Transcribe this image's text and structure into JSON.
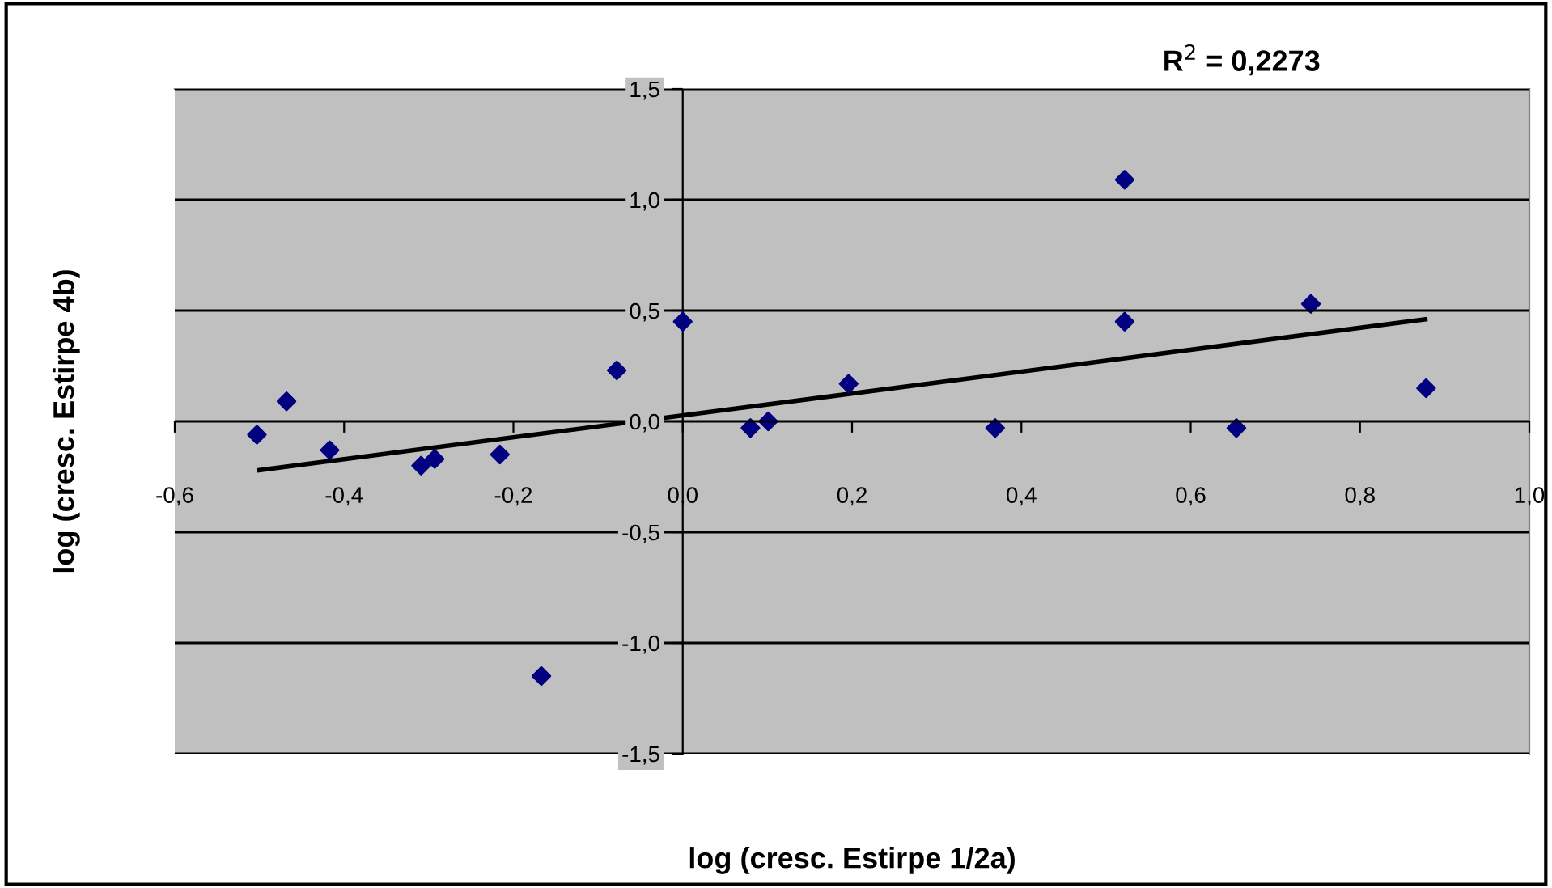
{
  "chart_data": {
    "type": "scatter",
    "xlabel": "log (cresc. Estirpe 1/2a)",
    "ylabel": "log (cresc. Estirpe 4b)",
    "annotations": [
      "R$^{2}$ = 0,2273"
    ],
    "series": [
      {
        "color": "#000080",
        "marker": "diamond",
        "x": [
          -0.503,
          -0.468,
          -0.417,
          -0.309,
          -0.293,
          -0.216,
          -0.167,
          -0.078,
          0.0,
          0.08,
          0.101,
          0.196,
          0.369,
          0.522,
          0.522,
          0.654,
          0.742,
          0.878
        ],
        "values": [
          -0.06,
          0.09,
          -0.13,
          -0.2,
          -0.17,
          -0.15,
          -1.15,
          0.23,
          0.45,
          -0.03,
          0.0,
          0.17,
          -0.03,
          1.09,
          0.45,
          -0.03,
          0.53,
          0.15
        ]
      },
      {
        "type": "line",
        "color": "#000000",
        "marker": "none",
        "line_style": "solid",
        "x": [
          -0.5,
          0.877
        ],
        "values": [
          -0.22,
          0.46
        ]
      }
    ],
    "xlim": [
      -0.6,
      1.0
    ],
    "ylim": [
      -1.5,
      1.5
    ],
    "xticks": [
      {
        "value": -0.6,
        "label": "-0,6"
      },
      {
        "value": -0.4,
        "label": "-0,4"
      },
      {
        "value": -0.2,
        "label": "-0,2"
      },
      {
        "value": 0.0,
        "label": "0,0"
      },
      {
        "value": 0.2,
        "label": "0,2"
      },
      {
        "value": 0.4,
        "label": "0,4"
      },
      {
        "value": 0.6,
        "label": "0,6"
      },
      {
        "value": 0.8,
        "label": "0,8"
      },
      {
        "value": 1.0,
        "label": "1,0"
      }
    ],
    "yticks": [
      {
        "value": -1.5,
        "label": "-1,5"
      },
      {
        "value": -1.0,
        "label": "-1,0"
      },
      {
        "value": -0.5,
        "label": "-0,5"
      },
      {
        "value": 0.0,
        "label": "0,0"
      },
      {
        "value": 0.5,
        "label": "0,5"
      },
      {
        "value": 1.0,
        "label": "1,0"
      },
      {
        "value": 1.5,
        "label": "1,5"
      }
    ],
    "grid": "y",
    "legend": false
  }
}
